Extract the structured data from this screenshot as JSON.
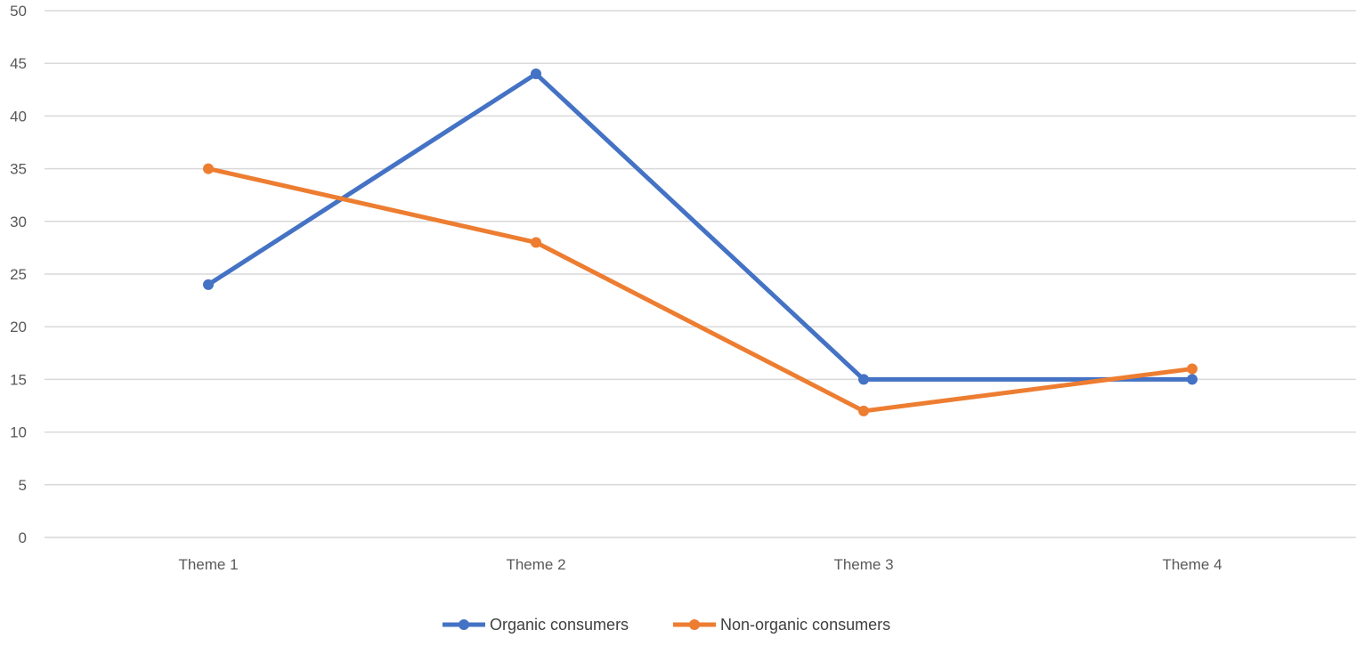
{
  "chart_data": {
    "type": "line",
    "title": "",
    "xlabel": "",
    "ylabel": "",
    "categories": [
      "Theme 1",
      "Theme 2",
      "Theme 3",
      "Theme 4"
    ],
    "ylim": [
      0,
      50
    ],
    "yticks": [
      0,
      5,
      10,
      15,
      20,
      25,
      30,
      35,
      40,
      45,
      50
    ],
    "grid": true,
    "legend_position": "bottom",
    "series": [
      {
        "name": "Organic consumers",
        "color": "#4472C4",
        "values": [
          24,
          44,
          15,
          15
        ]
      },
      {
        "name": "Non-organic consumers",
        "color": "#ED7D31",
        "values": [
          35,
          28,
          12,
          16
        ]
      }
    ]
  }
}
